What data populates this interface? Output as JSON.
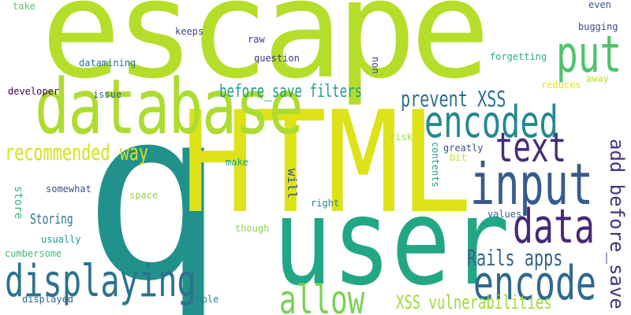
{
  "word_cloud": {
    "words": [
      {
        "text": "escape",
        "color": "#b5de2b",
        "orientation": "horizontal"
      },
      {
        "text": "q",
        "color": "#21918c",
        "orientation": "horizontal"
      },
      {
        "text": "HTML",
        "color": "#dde318",
        "orientation": "horizontal"
      },
      {
        "text": "user",
        "color": "#22a785",
        "orientation": "horizontal"
      },
      {
        "text": "database",
        "color": "#addc30",
        "orientation": "horizontal"
      },
      {
        "text": "encoded",
        "color": "#23898e",
        "orientation": "horizontal"
      },
      {
        "text": "put",
        "color": "#4ec36b",
        "orientation": "horizontal"
      },
      {
        "text": "input",
        "color": "#375b8d",
        "orientation": "horizontal"
      },
      {
        "text": "text",
        "color": "#472c7a",
        "orientation": "horizontal"
      },
      {
        "text": "data",
        "color": "#482878",
        "orientation": "horizontal"
      },
      {
        "text": "encode",
        "color": "#31688e",
        "orientation": "horizontal"
      },
      {
        "text": "displaying",
        "color": "#2c728e",
        "orientation": "horizontal"
      },
      {
        "text": "allow",
        "color": "#7ad151",
        "orientation": "horizontal"
      },
      {
        "text": "recommended way",
        "color": "#d2e21b",
        "orientation": "horizontal"
      },
      {
        "text": "prevent XSS",
        "color": "#2d708e",
        "orientation": "horizontal"
      },
      {
        "text": "before_save filters",
        "color": "#1f9e89",
        "orientation": "horizontal"
      },
      {
        "text": "add before_save",
        "color": "#46327e",
        "orientation": "vertical"
      },
      {
        "text": "Rails apps",
        "color": "#33638d",
        "orientation": "horizontal"
      },
      {
        "text": "XSS vulnerabilities",
        "color": "#a2da37",
        "orientation": "horizontal"
      },
      {
        "text": "Storing",
        "color": "#2a788e",
        "orientation": "horizontal"
      },
      {
        "text": "store",
        "color": "#35b779",
        "orientation": "vertical"
      },
      {
        "text": "will",
        "color": "#3b528b",
        "orientation": "vertical"
      },
      {
        "text": "contents",
        "color": "#20a386",
        "orientation": "vertical"
      },
      {
        "text": "non",
        "color": "#3e4989",
        "orientation": "vertical"
      },
      {
        "text": "bugging",
        "color": "#3f4889",
        "orientation": "horizontal"
      },
      {
        "text": "keeps",
        "color": "#404688",
        "orientation": "horizontal"
      },
      {
        "text": "raw",
        "color": "#443a83",
        "orientation": "horizontal"
      },
      {
        "text": "question",
        "color": "#453781",
        "orientation": "horizontal"
      },
      {
        "text": "datamining",
        "color": "#2c728e",
        "orientation": "horizontal"
      },
      {
        "text": "forgetting",
        "color": "#29af7f",
        "orientation": "horizontal"
      },
      {
        "text": "developer",
        "color": "#440154",
        "orientation": "horizontal"
      },
      {
        "text": "issue",
        "color": "#355f8d",
        "orientation": "horizontal"
      },
      {
        "text": "reduces",
        "color": "#e5e419",
        "orientation": "horizontal"
      },
      {
        "text": "away",
        "color": "#bddf26",
        "orientation": "horizontal"
      },
      {
        "text": "take",
        "color": "#56c667",
        "orientation": "horizontal"
      },
      {
        "text": "even",
        "color": "#39568c",
        "orientation": "horizontal"
      },
      {
        "text": "risk",
        "color": "#a5db36",
        "orientation": "horizontal"
      },
      {
        "text": "greatly",
        "color": "#3c508b",
        "orientation": "horizontal"
      },
      {
        "text": "bit",
        "color": "#c8e020",
        "orientation": "horizontal"
      },
      {
        "text": "make",
        "color": "#1fa188",
        "orientation": "horizontal"
      },
      {
        "text": "somewhat",
        "color": "#3b528b",
        "orientation": "horizontal"
      },
      {
        "text": "space",
        "color": "#8fd744",
        "orientation": "horizontal"
      },
      {
        "text": "right",
        "color": "#26828e",
        "orientation": "horizontal"
      },
      {
        "text": "values",
        "color": "#355f8d",
        "orientation": "horizontal"
      },
      {
        "text": "usually",
        "color": "#1f9a8a",
        "orientation": "horizontal"
      },
      {
        "text": "though",
        "color": "#8bd646",
        "orientation": "horizontal"
      },
      {
        "text": "cumbersome",
        "color": "#3dbc74",
        "orientation": "horizontal"
      },
      {
        "text": "displayed",
        "color": "#31688e",
        "orientation": "horizontal"
      },
      {
        "text": "Simple",
        "color": "#26828e",
        "orientation": "horizontal"
      }
    ]
  }
}
